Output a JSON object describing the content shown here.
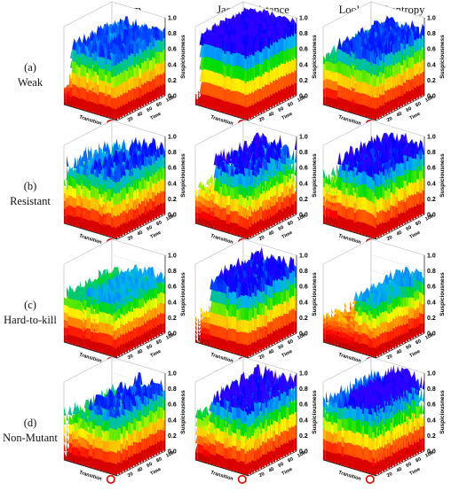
{
  "columns": [
    "Random",
    "Jaccard distance",
    "Lookahead entropy"
  ],
  "rows": [
    {
      "letter": "(a)",
      "name": "Weak"
    },
    {
      "letter": "(b)",
      "name": "Resistant"
    },
    {
      "letter": "(c)",
      "name": "Hard-to-kill"
    },
    {
      "letter": "(d)",
      "name": "Non-Mutant"
    }
  ],
  "chart_data": {
    "type": "surface3d",
    "grid": "3x4 panels",
    "z_axis": {
      "label": "Suspiciousness",
      "range": [
        0,
        1.0
      ],
      "ticks": [
        "0.0",
        "0.2",
        "0.4",
        "0.6",
        "0.8",
        "1.0"
      ]
    },
    "x_axis": {
      "label": "Transition"
    },
    "y_axis": {
      "label": "Time",
      "ticks": [
        "20",
        "40",
        "60",
        "80",
        "100"
      ]
    },
    "colormap": [
      "#b30000",
      "#ff0000",
      "#ff7f00",
      "#ffff00",
      "#00dd00",
      "#00b0ff",
      "#0000ff",
      "#7f00ff"
    ],
    "panels": [
      {
        "row": 0,
        "col": 0,
        "before": 0.28,
        "after": 0.82,
        "step": 0.12,
        "noise": 0.18,
        "dips": 2
      },
      {
        "row": 0,
        "col": 1,
        "before": 0.12,
        "after": 0.95,
        "step": 0.08,
        "noise": 0.1,
        "dips": 0
      },
      {
        "row": 0,
        "col": 2,
        "before": 0.65,
        "after": 0.85,
        "step": 0.3,
        "noise": 0.15,
        "dips": 4
      },
      {
        "row": 1,
        "col": 0,
        "before": 0.72,
        "after": 0.8,
        "step": 0.5,
        "noise": 0.28,
        "dips": 6
      },
      {
        "row": 1,
        "col": 1,
        "before": 0.4,
        "after": 0.85,
        "step": 0.35,
        "noise": 0.3,
        "dips": 5
      },
      {
        "row": 1,
        "col": 2,
        "before": 0.6,
        "after": 0.88,
        "step": 0.3,
        "noise": 0.22,
        "dips": 5
      },
      {
        "row": 2,
        "col": 0,
        "before": 0.62,
        "after": 0.72,
        "step": 0.4,
        "noise": 0.18,
        "dips": 3
      },
      {
        "row": 2,
        "col": 1,
        "before": 0.35,
        "after": 0.88,
        "step": 0.3,
        "noise": 0.2,
        "dips": 3
      },
      {
        "row": 2,
        "col": 2,
        "before": 0.3,
        "after": 0.72,
        "step": 0.55,
        "noise": 0.2,
        "dips": 2
      },
      {
        "row": 3,
        "col": 0,
        "before": 0.6,
        "after": 0.8,
        "step": 0.5,
        "noise": 0.25,
        "dips": 6
      },
      {
        "row": 3,
        "col": 1,
        "before": 0.55,
        "after": 0.9,
        "step": 0.3,
        "noise": 0.3,
        "dips": 6
      },
      {
        "row": 3,
        "col": 2,
        "before": 0.78,
        "after": 0.95,
        "step": 0.4,
        "noise": 0.2,
        "dips": 5
      }
    ]
  }
}
